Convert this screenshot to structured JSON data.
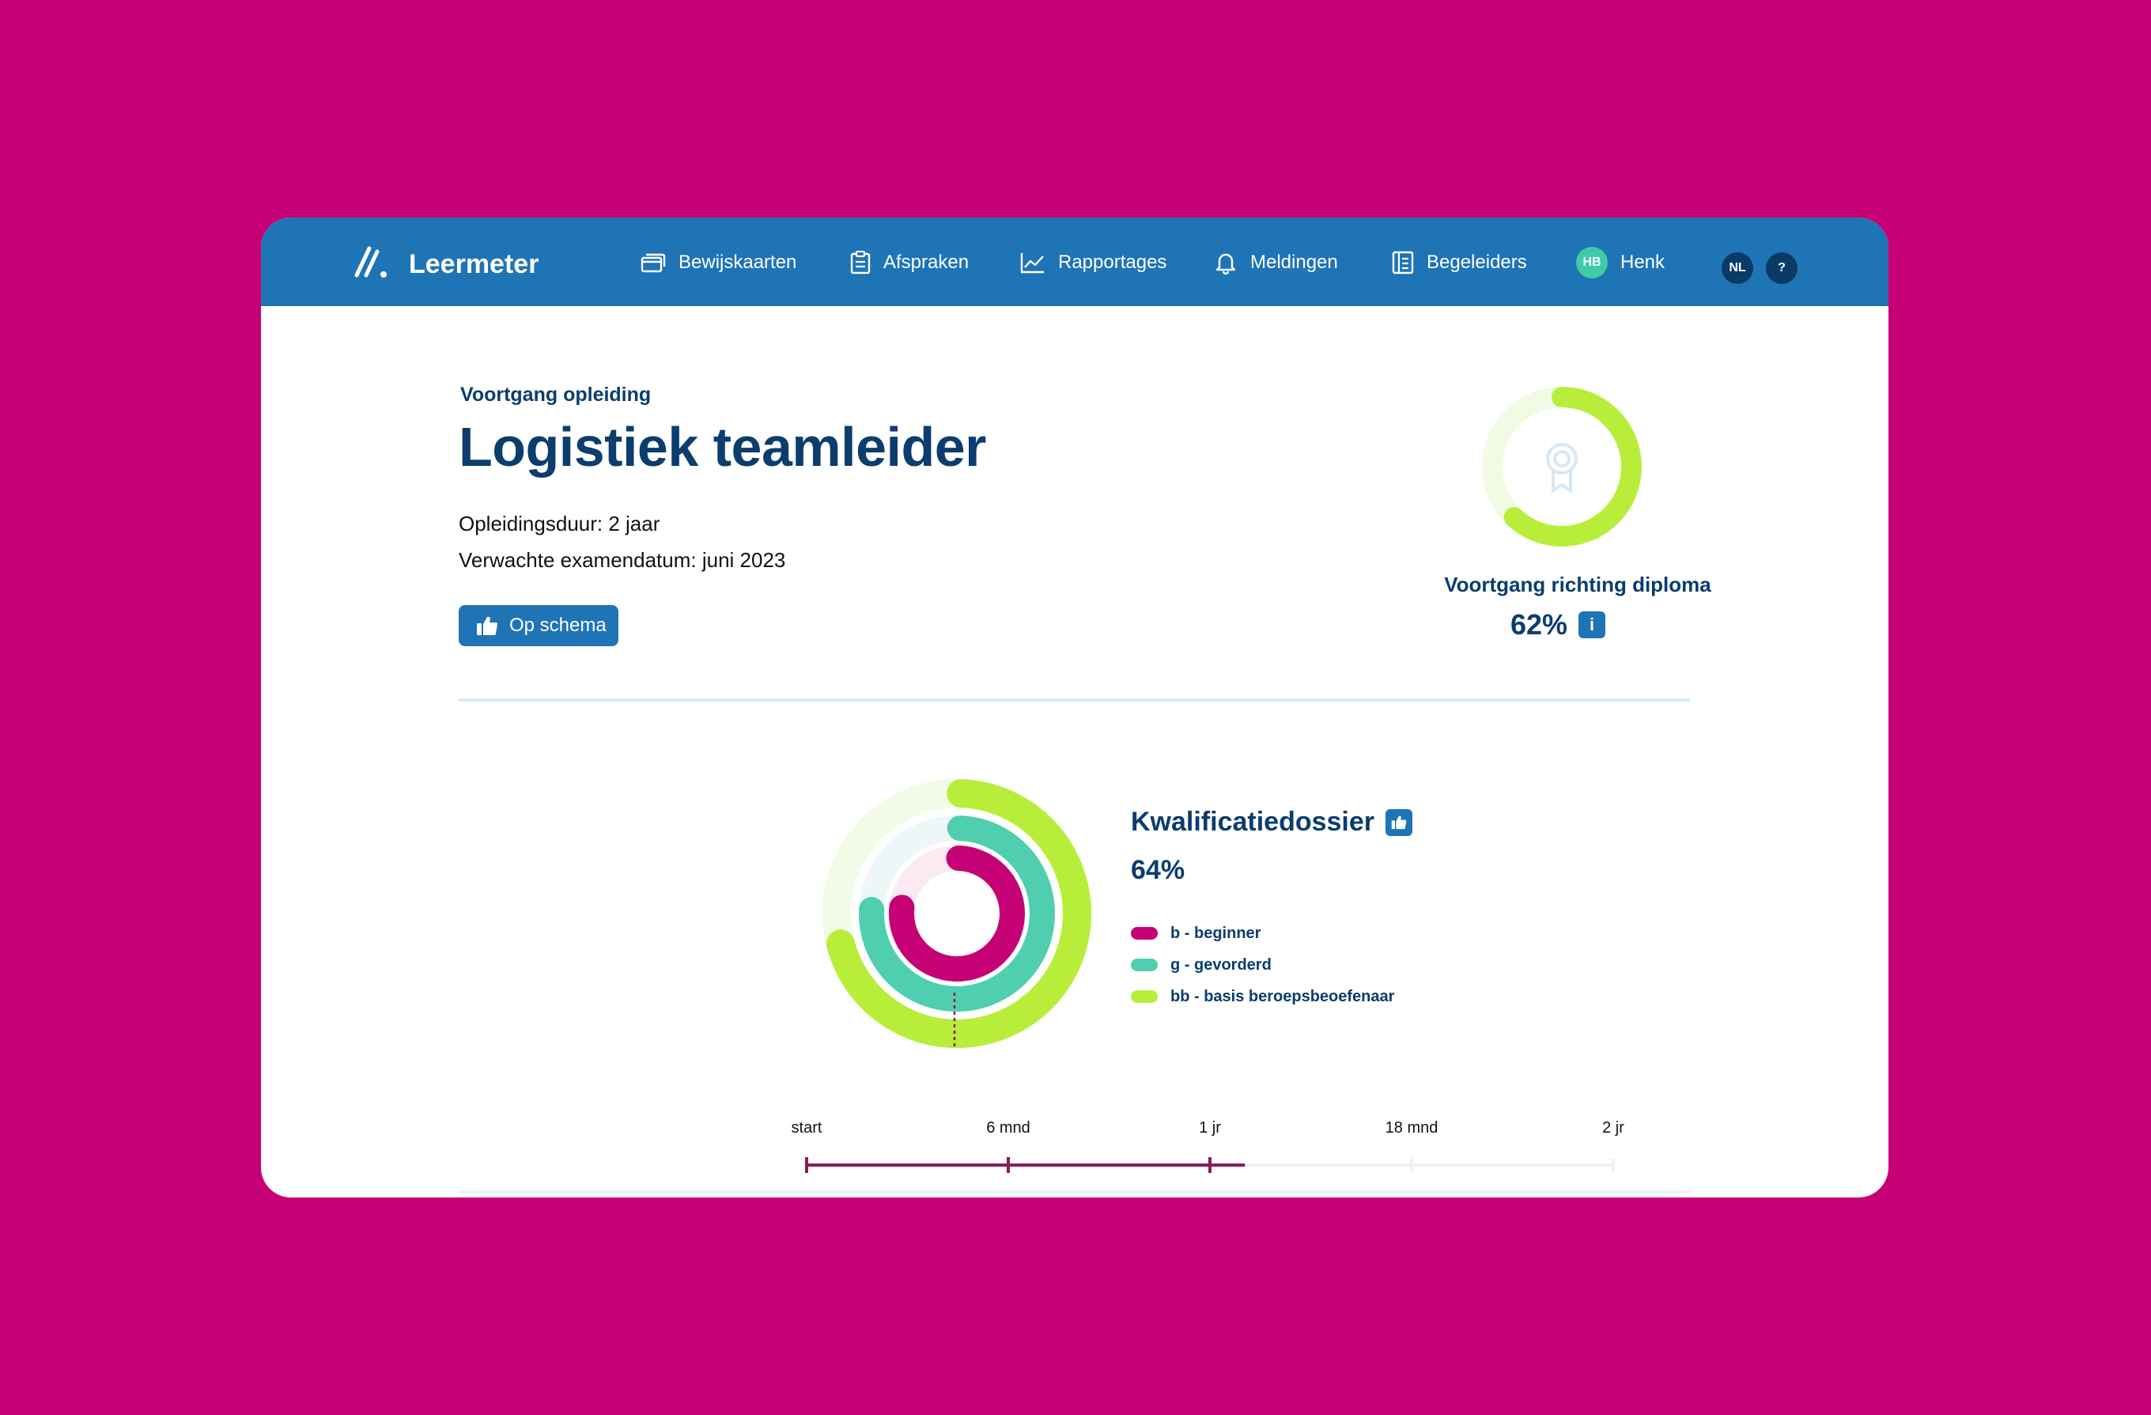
{
  "app": {
    "name": "Leermeter"
  },
  "nav": {
    "items": [
      {
        "label": "Bewijskaarten",
        "icon": "cards-icon"
      },
      {
        "label": "Afspraken",
        "icon": "clipboard-icon"
      },
      {
        "label": "Rapportages",
        "icon": "chart-line-icon"
      },
      {
        "label": "Meldingen",
        "icon": "bell-icon"
      },
      {
        "label": "Begeleiders",
        "icon": "document-list-icon"
      }
    ],
    "user": {
      "initials": "HB",
      "name": "Henk"
    },
    "language": "NL",
    "help": "?"
  },
  "header": {
    "eyebrow": "Voortgang opleiding",
    "title": "Logistiek teamleider",
    "duration": "Opleidingsduur: 2 jaar",
    "exam_date": "Verwachte examendatum: juni 2023",
    "status_button": "Op schema"
  },
  "diploma": {
    "label": "Voortgang richting diploma",
    "percent_text": "62%",
    "progress": 0.62,
    "info": "i",
    "color": "#b8ee3a"
  },
  "kwalificatie": {
    "title": "Kwalificatiedossier",
    "percent_text": "64%",
    "legend": [
      {
        "label": "b - beginner",
        "color": "#c60075"
      },
      {
        "label": "g - gevorderd",
        "color": "#4fcfaf"
      },
      {
        "label": "bb - basis beroepsbeoefenaar",
        "color": "#b8ee3a"
      }
    ]
  },
  "timeline": {
    "labels": [
      "start",
      "6 mnd",
      "1 jr",
      "18 mnd",
      "2 jr"
    ],
    "progress_months": 13,
    "total_months": 24,
    "color": "#8b1a5a"
  }
}
